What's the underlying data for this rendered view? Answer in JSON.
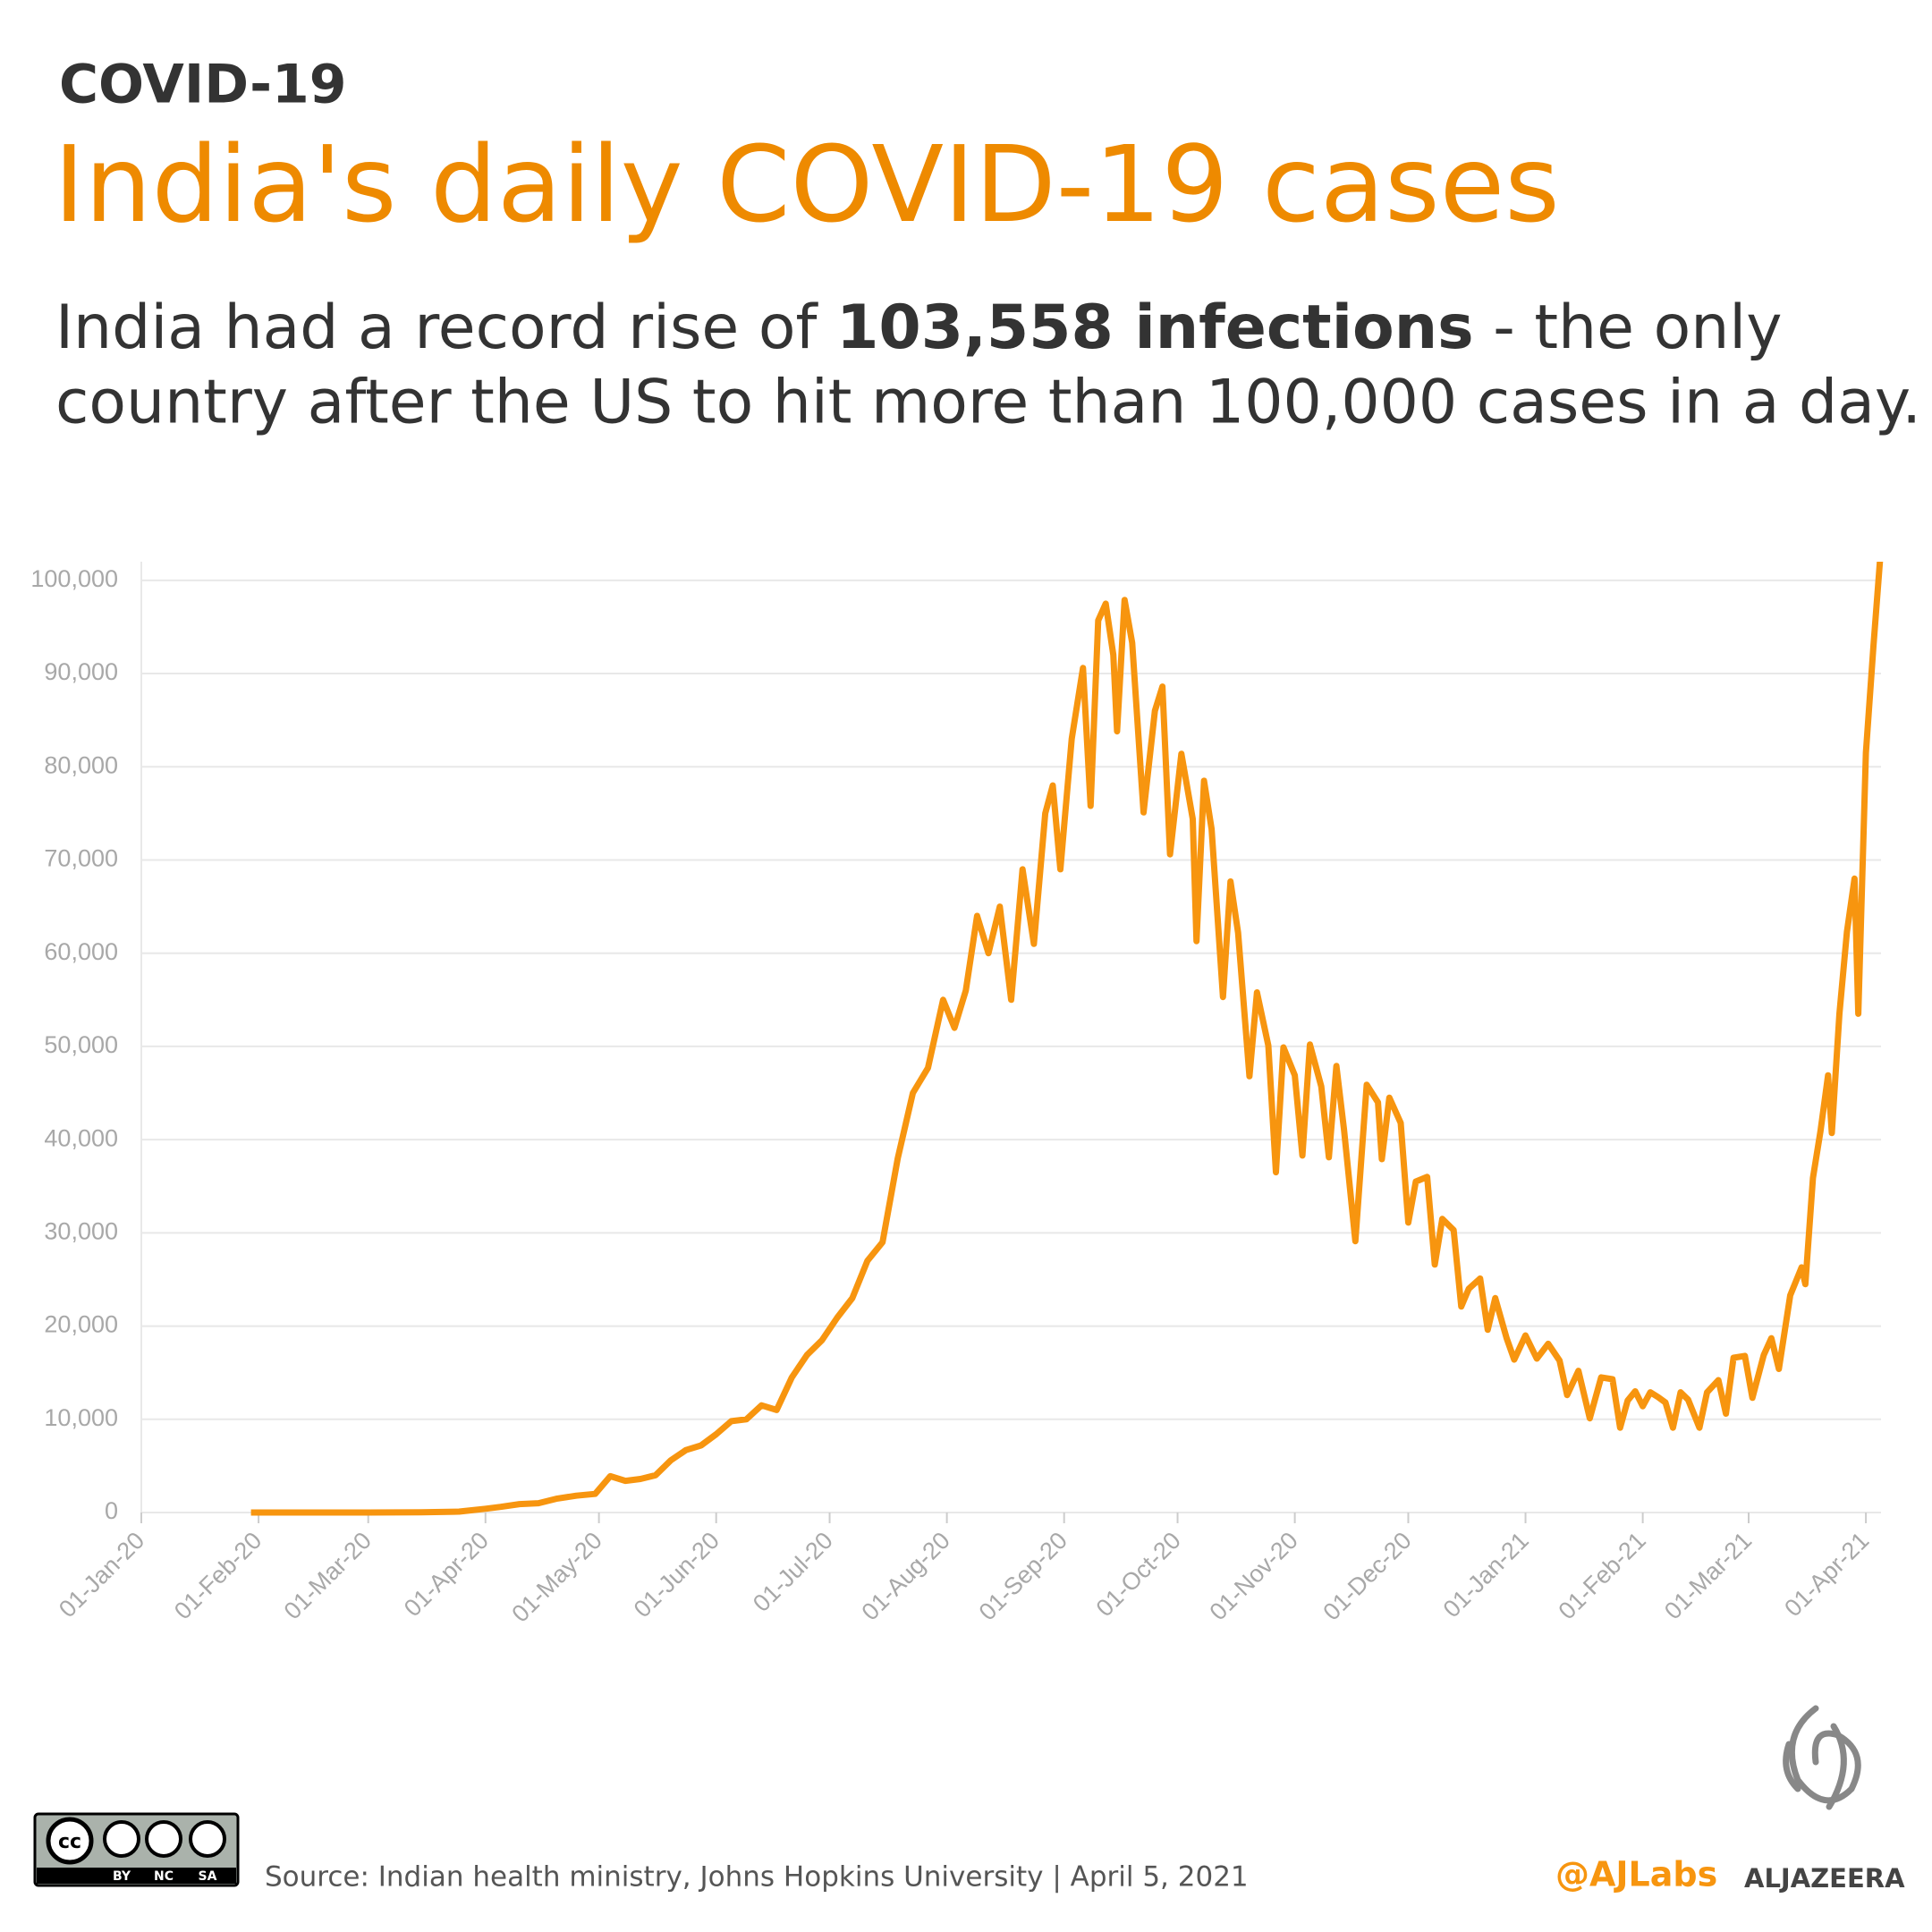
{
  "header": {
    "kicker": "COVID-19",
    "title": "India's daily COVID-19 cases",
    "subtitle_start": "India had a record rise of",
    "subtitle_bold": "103,558 infections",
    "subtitle_end": "- the only",
    "subtitle_line2": "country after the US to hit more than 100,000 cases in a day."
  },
  "chart_data": {
    "type": "line",
    "color": "#f7950f",
    "grid": true,
    "xlim": [
      "2020-01-01",
      "2021-04-05"
    ],
    "ylim": [
      0,
      102000
    ],
    "xticks": [
      {
        "value": "2020-01-01",
        "label": "01-Jan-20"
      },
      {
        "value": "2020-02-01",
        "label": "01-Feb-20"
      },
      {
        "value": "2020-03-01",
        "label": "01-Mar-20"
      },
      {
        "value": "2020-04-01",
        "label": "01-Apr-20"
      },
      {
        "value": "2020-05-01",
        "label": "01-May-20"
      },
      {
        "value": "2020-06-01",
        "label": "01-Jun-20"
      },
      {
        "value": "2020-07-01",
        "label": "01-Jul-20"
      },
      {
        "value": "2020-08-01",
        "label": "01-Aug-20"
      },
      {
        "value": "2020-09-01",
        "label": "01-Sep-20"
      },
      {
        "value": "2020-10-01",
        "label": "01-Oct-20"
      },
      {
        "value": "2020-11-01",
        "label": "01-Nov-20"
      },
      {
        "value": "2020-12-01",
        "label": "01-Dec-20"
      },
      {
        "value": "2021-01-01",
        "label": "01-Jan-21"
      },
      {
        "value": "2021-02-01",
        "label": "01-Feb-21"
      },
      {
        "value": "2021-03-01",
        "label": "01-Mar-21"
      },
      {
        "value": "2021-04-01",
        "label": "01-Apr-21"
      }
    ],
    "yticks": [
      0,
      {
        "value": 10000,
        "label": "10,000"
      },
      {
        "value": 20000,
        "label": "20,000"
      },
      {
        "value": 30000,
        "label": "30,000"
      },
      {
        "value": 40000,
        "label": "40,000"
      },
      {
        "value": 50000,
        "label": "50,000"
      },
      {
        "value": 60000,
        "label": "60,000"
      },
      {
        "value": 70000,
        "label": "70,000"
      },
      {
        "value": 80000,
        "label": "80,000"
      },
      {
        "value": 90000,
        "label": "90,000"
      },
      {
        "value": 100000,
        "label": "100,000"
      }
    ],
    "x": [
      "2020-01-30",
      "2020-02-15",
      "2020-03-01",
      "2020-03-15",
      "2020-03-25",
      "2020-04-01",
      "2020-04-05",
      "2020-04-10",
      "2020-04-15",
      "2020-04-20",
      "2020-04-25",
      "2020-04-30",
      "2020-05-04",
      "2020-05-08",
      "2020-05-12",
      "2020-05-16",
      "2020-05-20",
      "2020-05-24",
      "2020-05-28",
      "2020-06-01",
      "2020-06-05",
      "2020-06-09",
      "2020-06-13",
      "2020-06-17",
      "2020-06-21",
      "2020-06-25",
      "2020-06-29",
      "2020-07-03",
      "2020-07-07",
      "2020-07-11",
      "2020-07-15",
      "2020-07-19",
      "2020-07-23",
      "2020-07-27",
      "2020-07-31",
      "2020-08-03",
      "2020-08-06",
      "2020-08-09",
      "2020-08-12",
      "2020-08-15",
      "2020-08-18",
      "2020-08-21",
      "2020-08-24",
      "2020-08-27",
      "2020-08-29",
      "2020-08-31",
      "2020-09-03",
      "2020-09-06",
      "2020-09-08",
      "2020-09-10",
      "2020-09-12",
      "2020-09-14",
      "2020-09-15",
      "2020-09-17",
      "2020-09-19",
      "2020-09-22",
      "2020-09-25",
      "2020-09-27",
      "2020-09-29",
      "2020-10-02",
      "2020-10-05",
      "2020-10-06",
      "2020-10-08",
      "2020-10-10",
      "2020-10-13",
      "2020-10-15",
      "2020-10-17",
      "2020-10-20",
      "2020-10-22",
      "2020-10-25",
      "2020-10-27",
      "2020-10-29",
      "2020-11-01",
      "2020-11-03",
      "2020-11-05",
      "2020-11-08",
      "2020-11-10",
      "2020-11-12",
      "2020-11-14",
      "2020-11-17",
      "2020-11-20",
      "2020-11-23",
      "2020-11-24",
      "2020-11-26",
      "2020-11-29",
      "2020-12-01",
      "2020-12-03",
      "2020-12-06",
      "2020-12-08",
      "2020-12-10",
      "2020-12-13",
      "2020-12-15",
      "2020-12-17",
      "2020-12-20",
      "2020-12-22",
      "2020-12-24",
      "2020-12-27",
      "2020-12-29",
      "2021-01-01",
      "2021-01-04",
      "2021-01-07",
      "2021-01-10",
      "2021-01-12",
      "2021-01-15",
      "2021-01-18",
      "2021-01-21",
      "2021-01-24",
      "2021-01-26",
      "2021-01-28",
      "2021-01-30",
      "2021-02-01",
      "2021-02-03",
      "2021-02-05",
      "2021-02-07",
      "2021-02-09",
      "2021-02-11",
      "2021-02-13",
      "2021-02-16",
      "2021-02-18",
      "2021-02-21",
      "2021-02-23",
      "2021-02-25",
      "2021-02-28",
      "2021-03-02",
      "2021-03-05",
      "2021-03-07",
      "2021-03-09",
      "2021-03-12",
      "2021-03-15",
      "2021-03-16",
      "2021-03-18",
      "2021-03-20",
      "2021-03-22",
      "2021-03-23",
      "2021-03-25",
      "2021-03-27",
      "2021-03-29",
      "2021-03-30",
      "2021-04-01",
      "2021-04-03",
      "2021-04-05"
    ],
    "values": [
      1,
      0,
      0,
      20,
      100,
      400,
      600,
      900,
      1000,
      1500,
      1800,
      2000,
      3900,
      3400,
      3600,
      4000,
      5600,
      6700,
      7200,
      8400,
      9800,
      10000,
      11500,
      11000,
      14500,
      16900,
      18500,
      20900,
      23000,
      27000,
      29000,
      38000,
      45000,
      47700,
      55000,
      52000,
      56000,
      64000,
      60000,
      65000,
      55000,
      69000,
      61000,
      75000,
      78000,
      69000,
      83000,
      90600,
      75800,
      95700,
      97500,
      92000,
      83800,
      97900,
      93300,
      75100,
      86000,
      88600,
      70600,
      81400,
      74400,
      61300,
      78500,
      73300,
      55300,
      67700,
      62200,
      46800,
      55800,
      50100,
      36500,
      49900,
      46900,
      38300,
      50200,
      45700,
      38100,
      47900,
      41100,
      29100,
      45900,
      44000,
      37900,
      44500,
      41800,
      31100,
      35500,
      36000,
      26600,
      31500,
      30300,
      22100,
      24000,
      25100,
      19600,
      23000,
      18700,
      16400,
      19000,
      16500,
      18100,
      16300,
      12600,
      15200,
      10100,
      14500,
      14300,
      9100,
      12000,
      13000,
      11400,
      12900,
      12400,
      11800,
      9100,
      12900,
      12100,
      9100,
      12900,
      14200,
      10600,
      16600,
      16800,
      12300,
      16900,
      18700,
      15400,
      23300,
      26300,
      24500,
      35900,
      40900,
      46900,
      40700,
      53500,
      62300,
      68000,
      53500,
      81500,
      92900,
      103558
    ]
  },
  "footer": {
    "license_by": "BY",
    "license_nc": "NC",
    "license_sa": "SA",
    "source": "Source: Indian health ministry, Johns Hopkins University | April 5, 2021",
    "handle": "@AJLabs",
    "brand": "ALJAZEERA"
  }
}
